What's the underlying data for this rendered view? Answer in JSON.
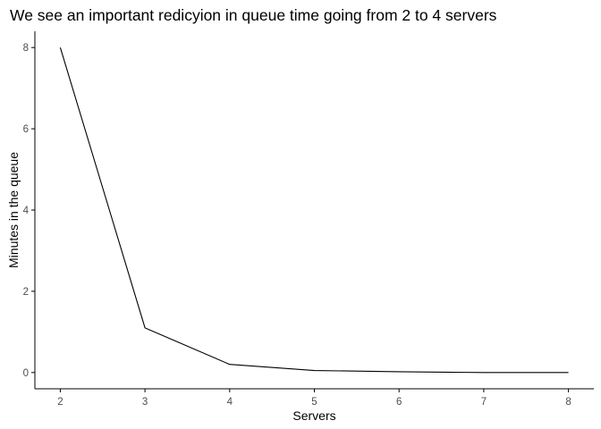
{
  "chart_data": {
    "type": "line",
    "title": "We see an important redicyion in queue time going from 2 to 4 servers",
    "xlabel": "Servers",
    "ylabel": "Minutes in the queue",
    "x": [
      2,
      3,
      4,
      5,
      6,
      7,
      8
    ],
    "series": [
      {
        "values": [
          8.0,
          1.1,
          0.2,
          0.05,
          0.02,
          0.0,
          0.0
        ],
        "color": "#000000"
      }
    ],
    "xticks": [
      2,
      3,
      4,
      5,
      6,
      7,
      8
    ],
    "yticks": [
      0,
      2,
      4,
      6,
      8
    ],
    "xlim": [
      1.7,
      8.3
    ],
    "ylim": [
      -0.4,
      8.4
    ],
    "grid": false,
    "legend": "none",
    "colors": {
      "text": "#000000",
      "tick_label": "#4d4d4d",
      "axis": "#000000"
    }
  }
}
